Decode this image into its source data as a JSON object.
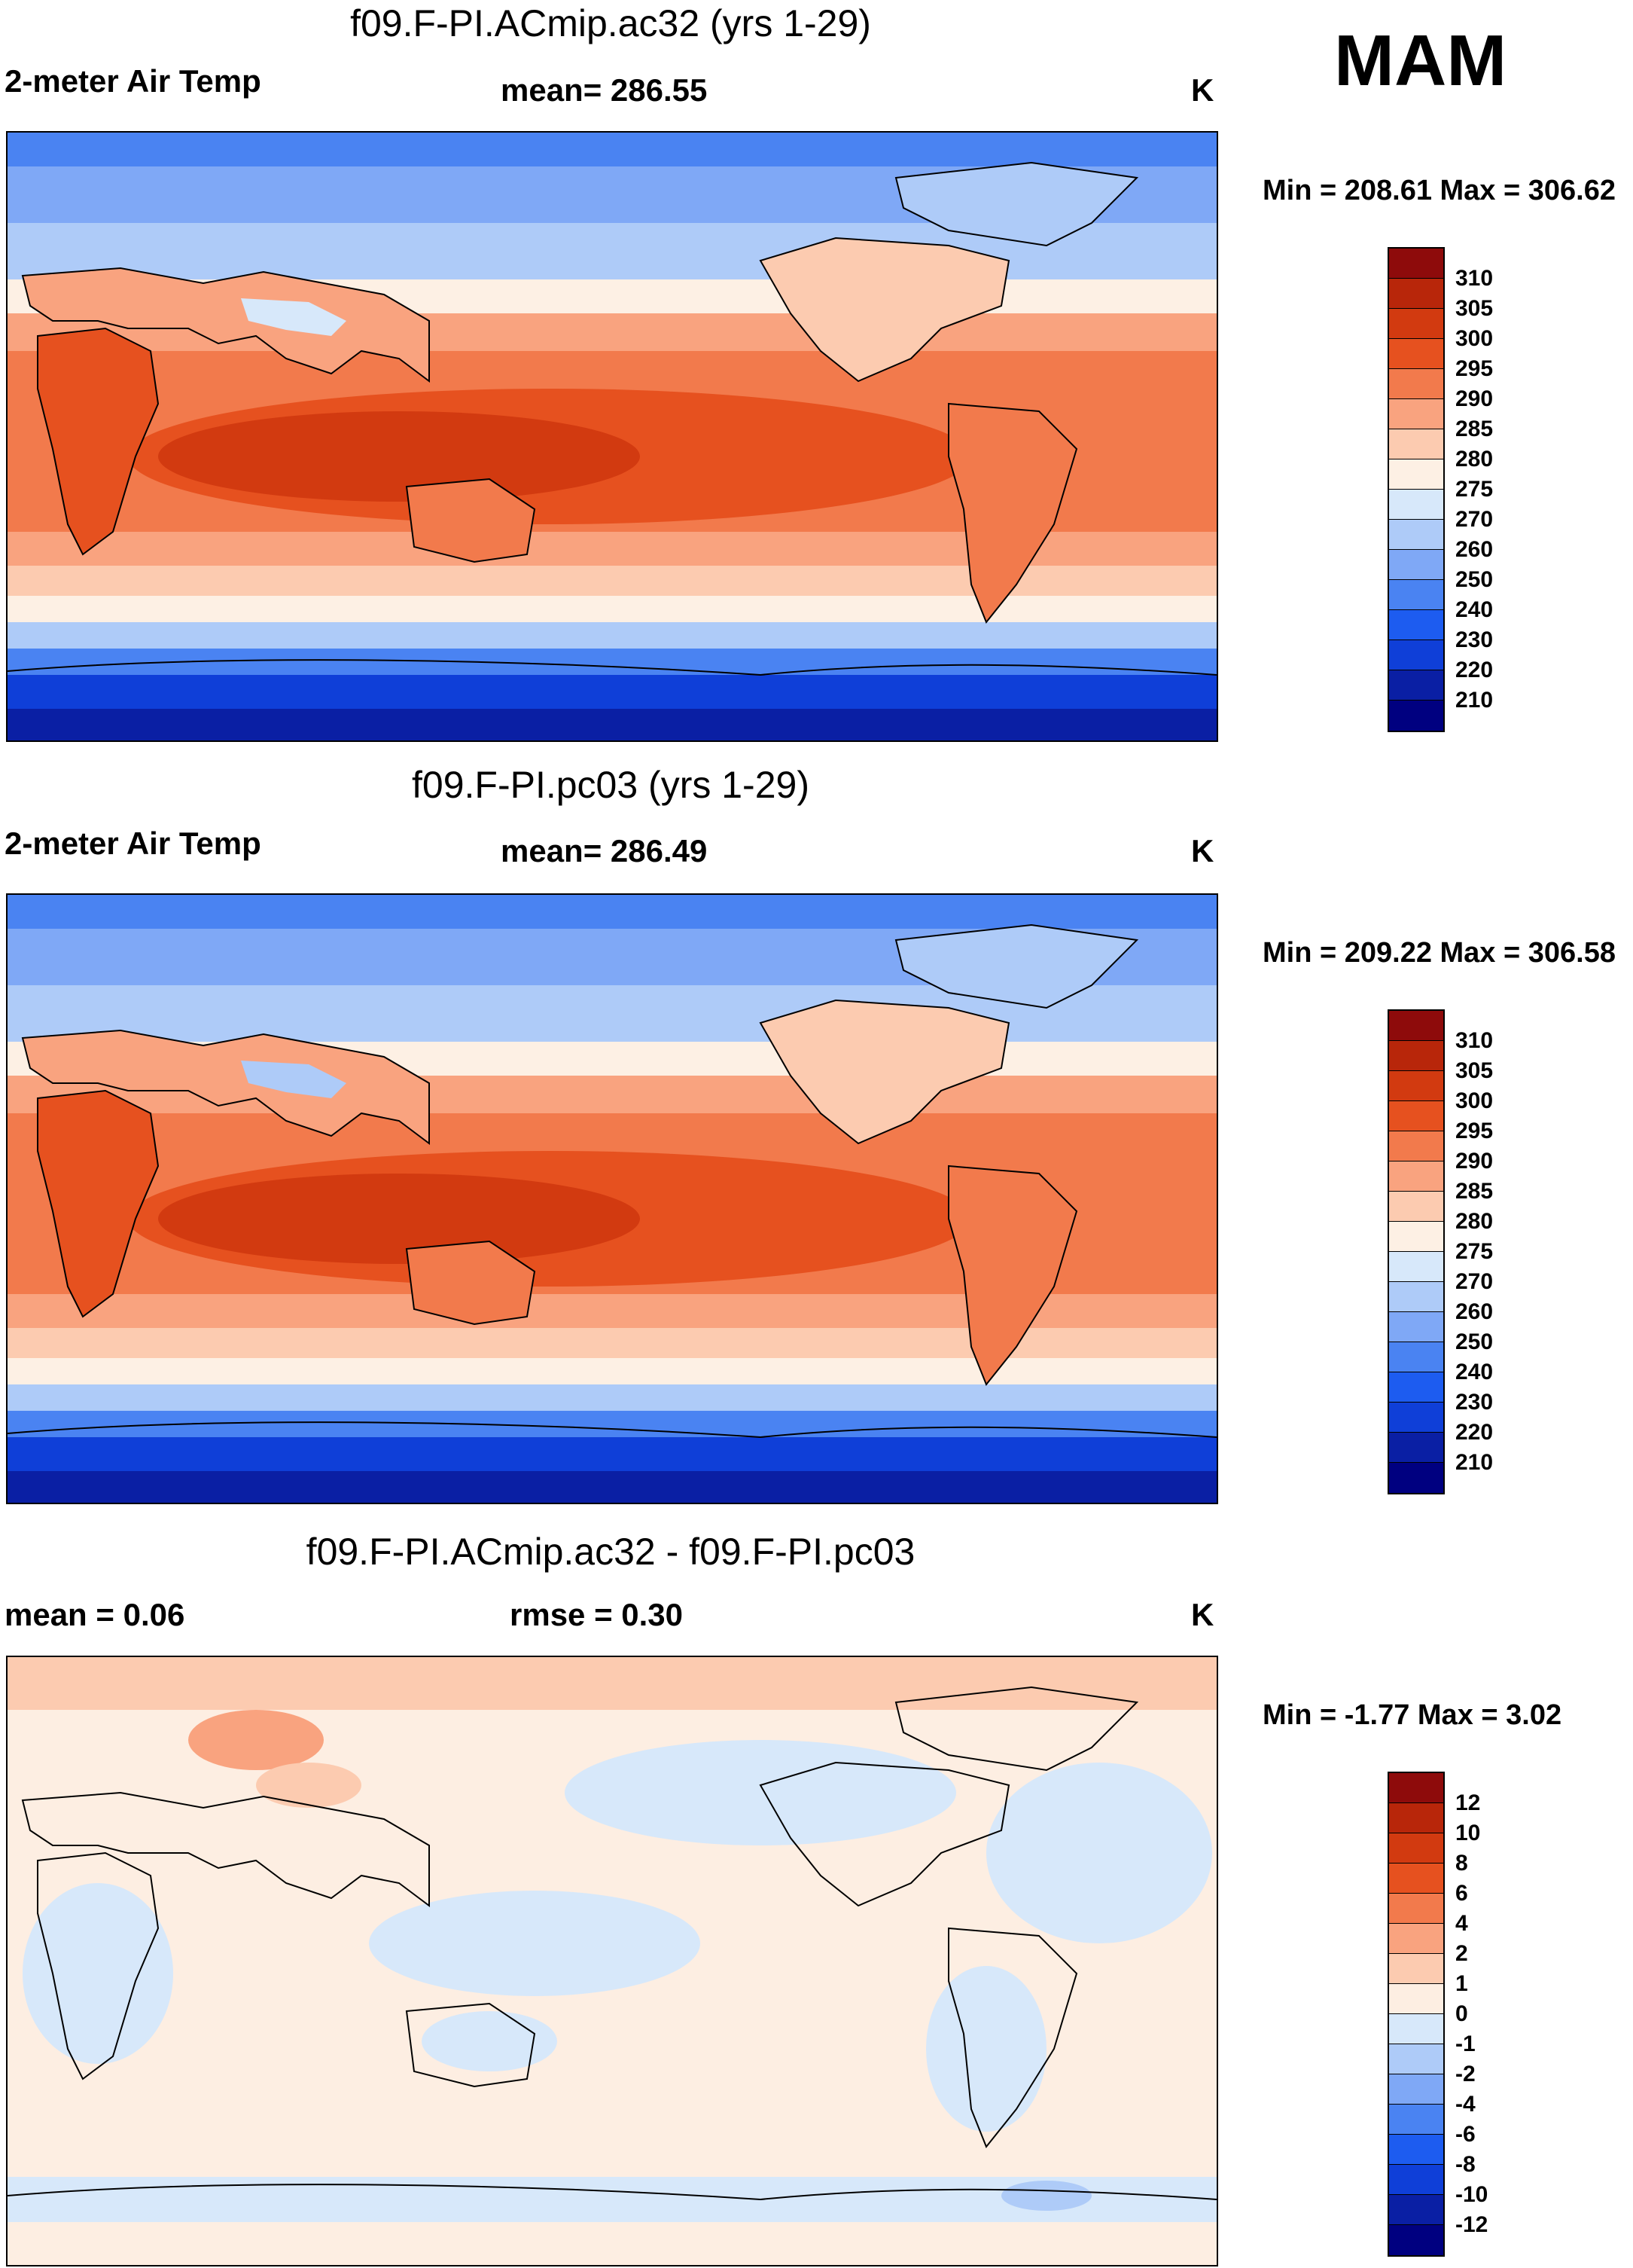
{
  "season": "MAM",
  "units": "K",
  "colors": {
    "abs_scale": [
      "#000080",
      "#0a1fa4",
      "#0f3fd8",
      "#1d5cf0",
      "#4a83f2",
      "#7fa8f6",
      "#aecbf8",
      "#d7e8fa",
      "#fdf0e4",
      "#fccbb0",
      "#f9a37f",
      "#f27a4c",
      "#e6511f",
      "#d23a10",
      "#b8260a",
      "#8e0b0b"
    ],
    "diff_scale": [
      "#000080",
      "#0a1fa4",
      "#0f3fd8",
      "#1d5cf0",
      "#4a83f2",
      "#7fa8f6",
      "#aecbf8",
      "#d7e8fa",
      "#fdeee2",
      "#fccbb0",
      "#f9a37f",
      "#f27a4c",
      "#e6511f",
      "#d23a10",
      "#b8260a",
      "#8e0b0b"
    ]
  },
  "panels": [
    {
      "id": "panel-ac32",
      "title": "f09.F-PI.ACmip.ac32 (yrs 1-29)",
      "left_label": "2-meter Air Temp",
      "center_label": "mean= 286.55",
      "units": "K",
      "min_max": "Min = 208.61 Max = 306.62",
      "colorbar_levels": [
        "310",
        "305",
        "300",
        "295",
        "290",
        "285",
        "280",
        "275",
        "270",
        "260",
        "250",
        "240",
        "230",
        "220",
        "210"
      ]
    },
    {
      "id": "panel-pc03",
      "title": "f09.F-PI.pc03 (yrs 1-29)",
      "left_label": "2-meter Air Temp",
      "center_label": "mean= 286.49",
      "units": "K",
      "min_max": "Min = 209.22 Max = 306.58",
      "colorbar_levels": [
        "310",
        "305",
        "300",
        "295",
        "290",
        "285",
        "280",
        "275",
        "270",
        "260",
        "250",
        "240",
        "230",
        "220",
        "210"
      ]
    },
    {
      "id": "panel-diff",
      "title": "f09.F-PI.ACmip.ac32 - f09.F-PI.pc03",
      "left_label": "mean =   0.06",
      "center_label": "rmse =   0.30",
      "units": "K",
      "min_max": "Min =  -1.77 Max =   3.02",
      "colorbar_levels": [
        "12",
        "10",
        "8",
        "6",
        "4",
        "2",
        "1",
        "0",
        "-1",
        "-2",
        "-4",
        "-6",
        "-8",
        "-10",
        "-12"
      ]
    }
  ]
}
